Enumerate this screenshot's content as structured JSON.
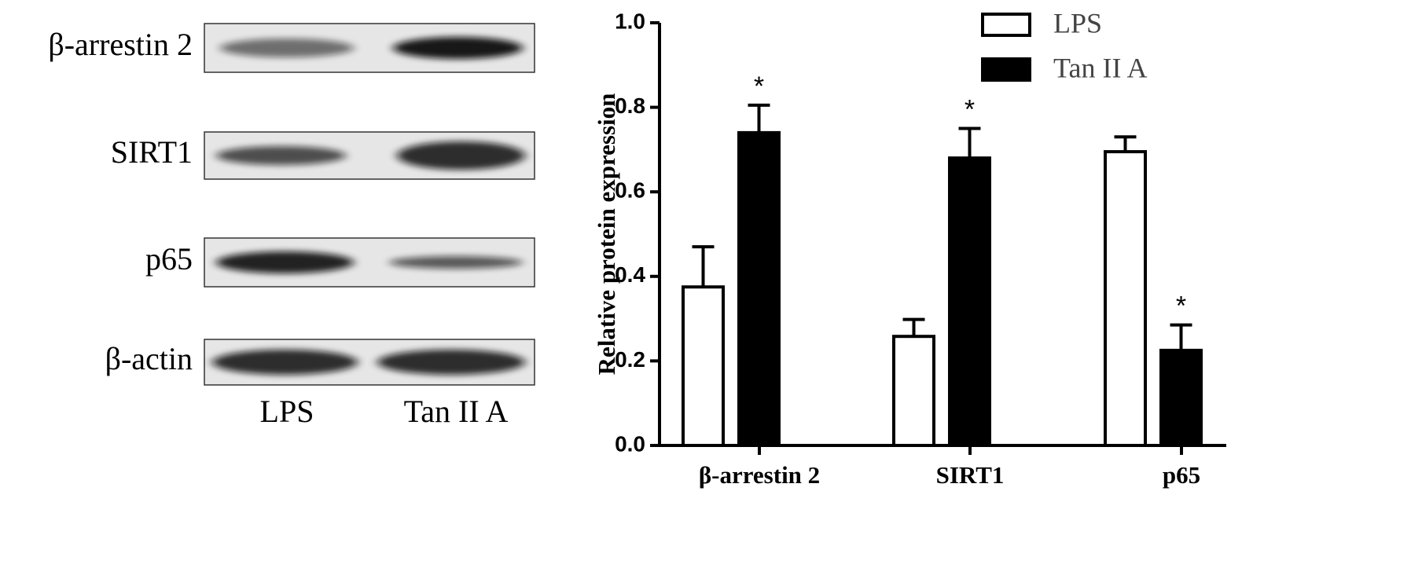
{
  "blot": {
    "rows": [
      "β-arrestin 2",
      "SIRT1",
      "p65",
      "β-actin"
    ],
    "lanes": [
      "LPS",
      "Tan II A"
    ]
  },
  "chart_data": {
    "type": "bar",
    "ylabel": "Relative protein expression",
    "categories": [
      "β-arrestin 2",
      "SIRT1",
      "p65"
    ],
    "series": [
      {
        "name": "LPS",
        "color": "#ffffff",
        "values": [
          0.375,
          0.258,
          0.695
        ],
        "errors": [
          0.095,
          0.04,
          0.035
        ]
      },
      {
        "name": "Tan II A",
        "color": "#000000",
        "values": [
          0.74,
          0.68,
          0.225
        ],
        "errors": [
          0.065,
          0.07,
          0.06
        ],
        "labels": [
          "*",
          "*",
          "*"
        ]
      }
    ],
    "ylim": [
      0,
      1
    ],
    "yticks": [
      {
        "value": 0,
        "label": "0.0"
      },
      {
        "value": 0.2,
        "label": "0.2"
      },
      {
        "value": 0.4,
        "label": "0.4"
      },
      {
        "value": 0.6,
        "label": "0.6"
      },
      {
        "value": 0.8,
        "label": "0.8"
      },
      {
        "value": 1,
        "label": "1.0"
      }
    ],
    "legend": "top-right"
  }
}
